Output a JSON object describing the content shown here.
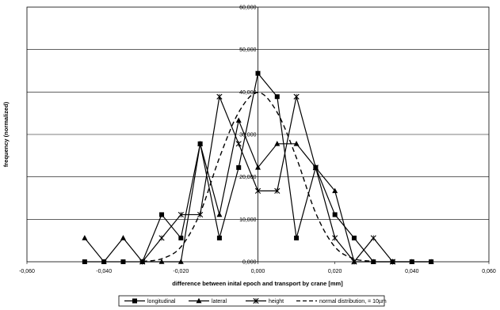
{
  "chart_data": {
    "type": "line",
    "xlabel": "difference between inital epoch and transport by crane [mm]",
    "ylabel": "frequency (normalized)",
    "xlim": [
      -0.06,
      0.06
    ],
    "ylim": [
      0,
      60000
    ],
    "xticks": [
      "-0,060",
      "-0,040",
      "-0,020",
      "0,000",
      "0,020",
      "0,040",
      "0,060"
    ],
    "yticks": [
      "0,000",
      "10,000",
      "20,000",
      "30,000",
      "40,000",
      "50,000",
      "60,000"
    ],
    "grid": "horizontal",
    "legend_position": "bottom",
    "series": [
      {
        "name": "longitudinal",
        "color": "#000000",
        "marker": "square",
        "dash": "solid",
        "x": [
          -0.045,
          -0.04,
          -0.035,
          -0.03,
          -0.025,
          -0.02,
          -0.015,
          -0.01,
          -0.005,
          0.0,
          0.005,
          0.01,
          0.015,
          0.02,
          0.025,
          0.03,
          0.035,
          0.04,
          0.045
        ],
        "y": [
          0,
          0,
          0,
          0,
          11100,
          5600,
          27800,
          5600,
          22200,
          44400,
          38900,
          5600,
          22200,
          11100,
          5600,
          0,
          0,
          0,
          0
        ]
      },
      {
        "name": "lateral",
        "color": "#000000",
        "marker": "triangle",
        "dash": "solid",
        "x": [
          -0.045,
          -0.04,
          -0.035,
          -0.03,
          -0.025,
          -0.02,
          -0.015,
          -0.01,
          -0.005,
          0.0,
          0.005,
          0.01,
          0.015,
          0.02,
          0.025,
          0.03,
          0.035,
          0.04,
          0.045
        ],
        "y": [
          5600,
          0,
          5600,
          0,
          0,
          0,
          27800,
          11100,
          33300,
          22200,
          27800,
          27800,
          22200,
          16700,
          0,
          0,
          0,
          0,
          0
        ]
      },
      {
        "name": "height",
        "color": "#000000",
        "marker": "x",
        "dash": "solid",
        "x": [
          -0.03,
          -0.025,
          -0.02,
          -0.015,
          -0.01,
          -0.005,
          0.0,
          0.005,
          0.01,
          0.015,
          0.02,
          0.025,
          0.03,
          0.035
        ],
        "y": [
          0,
          5600,
          11100,
          11100,
          38900,
          27800,
          16700,
          16700,
          38900,
          22200,
          5600,
          0,
          5600,
          0
        ]
      },
      {
        "name": "normal distribution,   = 10µm",
        "color": "#000000",
        "marker": "none",
        "dash": "dashed",
        "x": [
          -0.03,
          -0.025,
          -0.02,
          -0.015,
          -0.01,
          -0.005,
          0.0,
          0.005,
          0.01,
          0.015,
          0.02,
          0.025,
          0.03
        ],
        "y": [
          100,
          700,
          3500,
          11500,
          24500,
          35200,
          39900,
          35200,
          24500,
          11500,
          3500,
          700,
          100
        ]
      }
    ]
  }
}
